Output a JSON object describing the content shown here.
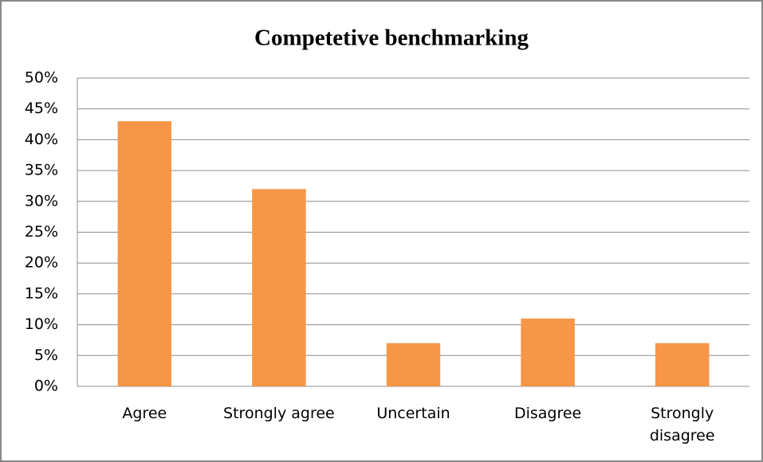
{
  "chart_data": {
    "type": "bar",
    "title": "Competetive benchmarking",
    "categories": [
      "Agree",
      "Strongly agree",
      "Uncertain",
      "Disagree",
      "Strongly disagree"
    ],
    "values": [
      43,
      32,
      7,
      11,
      7
    ],
    "color": "#f79646",
    "ylim": [
      0,
      50
    ],
    "yticks": [
      {
        "value": 0,
        "label": "0%"
      },
      {
        "value": 5,
        "label": "5%"
      },
      {
        "value": 10,
        "label": "10%"
      },
      {
        "value": 15,
        "label": "15%"
      },
      {
        "value": 20,
        "label": "20%"
      },
      {
        "value": 25,
        "label": "25%"
      },
      {
        "value": 30,
        "label": "30%"
      },
      {
        "value": 35,
        "label": "35%"
      },
      {
        "value": 40,
        "label": "40%"
      },
      {
        "value": 45,
        "label": "45%"
      },
      {
        "value": 50,
        "label": "50%"
      }
    ],
    "grid": true
  }
}
